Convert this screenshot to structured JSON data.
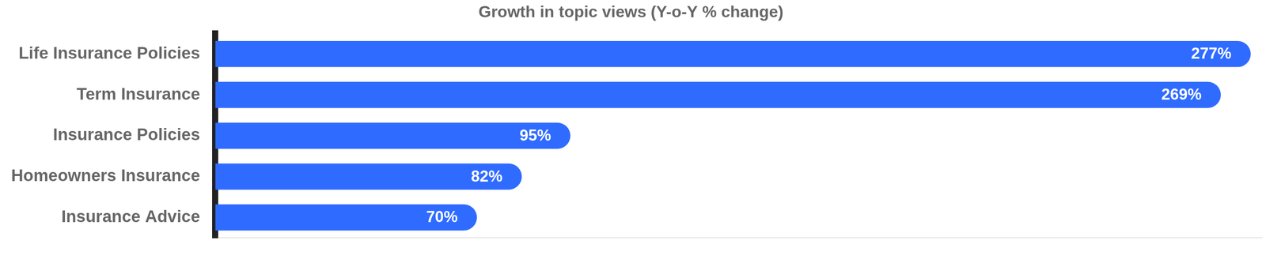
{
  "chart_data": {
    "type": "bar",
    "title": "Growth in topic views (Y-o-Y % change)",
    "orientation": "horizontal",
    "categories": [
      "Life Insurance Policies",
      "Term Insurance",
      "Insurance Policies",
      "Homeowners Insurance",
      "Insurance Advice"
    ],
    "values": [
      277,
      269,
      95,
      82,
      70
    ],
    "value_labels": [
      "277%",
      "269%",
      "95%",
      "82%",
      "70%"
    ],
    "color": "#2f6bff",
    "xlim": [
      0,
      280
    ],
    "xticks": [],
    "grid": false,
    "data_labels": true,
    "tick_labels": "y"
  }
}
